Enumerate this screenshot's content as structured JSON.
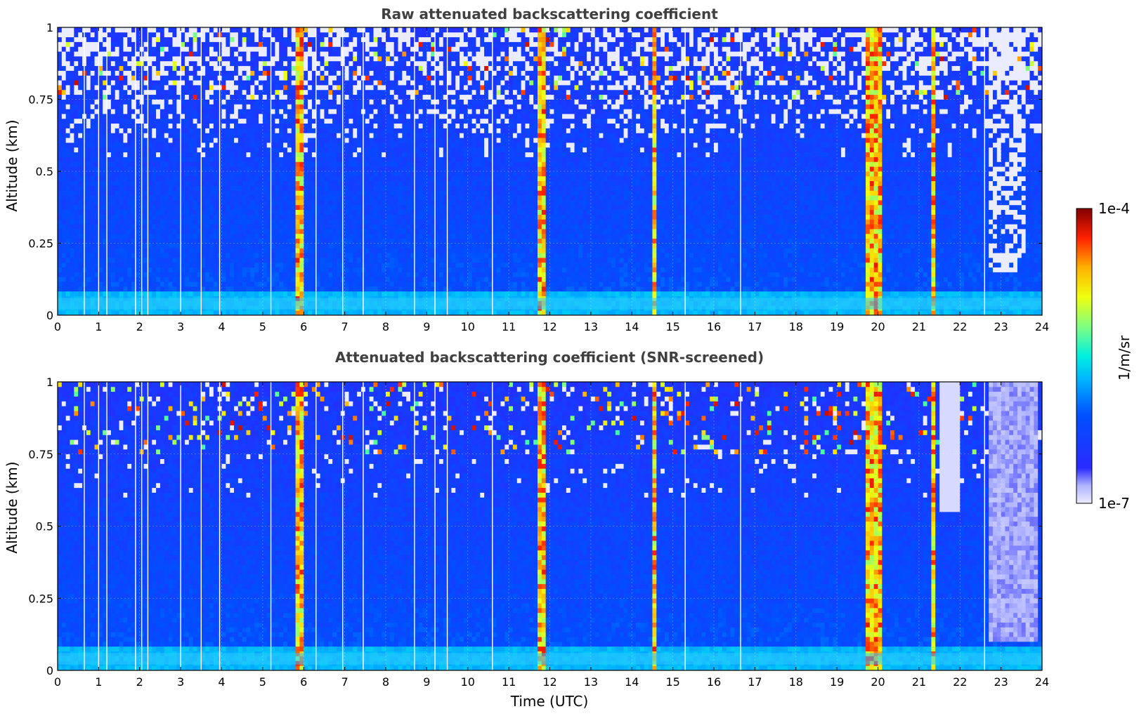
{
  "chart_data": [
    {
      "type": "heatmap",
      "title": "Raw attenuated backscattering coefficient",
      "xlabel": "",
      "ylabel": "Altitude (km)",
      "xlim": [
        0,
        24
      ],
      "ylim": [
        0,
        1
      ],
      "xticks": [
        "0",
        "1",
        "2",
        "3",
        "4",
        "5",
        "6",
        "7",
        "8",
        "9",
        "10",
        "11",
        "12",
        "13",
        "14",
        "15",
        "16",
        "17",
        "18",
        "19",
        "20",
        "21",
        "22",
        "23",
        "24"
      ],
      "yticks": [
        "0",
        "0.25",
        "0.5",
        "0.75",
        "1"
      ],
      "grid": true,
      "screened": false
    },
    {
      "type": "heatmap",
      "title": "Attenuated backscattering coefficient (SNR-screened)",
      "xlabel": "Time (UTC)",
      "ylabel": "Altitude (km)",
      "xlim": [
        0,
        24
      ],
      "ylim": [
        0,
        1
      ],
      "xticks": [
        "0",
        "1",
        "2",
        "3",
        "4",
        "5",
        "6",
        "7",
        "8",
        "9",
        "10",
        "11",
        "12",
        "13",
        "14",
        "15",
        "16",
        "17",
        "18",
        "19",
        "20",
        "21",
        "22",
        "23",
        "24"
      ],
      "yticks": [
        "0",
        "0.25",
        "0.5",
        "0.75",
        "1"
      ],
      "grid": true,
      "screened": true
    }
  ],
  "colorbar": {
    "min_label": "1e-7",
    "max_label": "1e-4",
    "unit": "1/m/sr",
    "colormap": "jet",
    "scale": "log"
  },
  "features": {
    "strong_columns_utc": [
      [
        5.85,
        5.95
      ],
      [
        11.7,
        11.9
      ],
      [
        14.5,
        14.6
      ],
      [
        19.75,
        20.05
      ],
      [
        21.3,
        21.4
      ]
    ],
    "gap_lines_utc": [
      0.65,
      1.0,
      1.2,
      1.9,
      2.05,
      2.2,
      3.0,
      3.5,
      3.95,
      5.2,
      6.3,
      6.95,
      7.45,
      8.7,
      9.2,
      9.5,
      10.6,
      15.3,
      16.65,
      22.6
    ],
    "near_surface_layer_km": [
      0.02,
      0.06
    ],
    "cloud_top_band_km": [
      0.75,
      1.0
    ]
  }
}
